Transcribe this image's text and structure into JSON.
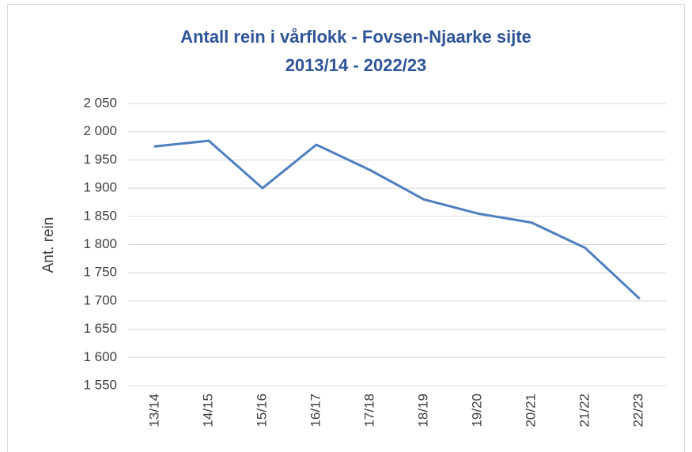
{
  "chart_data": {
    "type": "line",
    "title": "Antall rein i vårflokk - Fovsen-Njaarke sijte",
    "subtitle": "2013/14 - 2022/23",
    "y_label": "Ant. rein",
    "categories": [
      "13/14",
      "14/15",
      "15/16",
      "16/17",
      "17/18",
      "18/19",
      "19/20",
      "20/21",
      "21/22",
      "22/23"
    ],
    "series": [
      {
        "name": "Ant. rein",
        "color": "#4f7fbf",
        "values": [
          1974,
          1984,
          1900,
          1977,
          1932,
          1880,
          1855,
          1839,
          1794,
          1705
        ]
      }
    ],
    "ylim": [
      1550,
      2050
    ],
    "yticks": [
      {
        "value": 1550,
        "label": "1 550"
      },
      {
        "value": 1600,
        "label": "1 600"
      },
      {
        "value": 1650,
        "label": "1 650"
      },
      {
        "value": 1700,
        "label": "1 700"
      },
      {
        "value": 1750,
        "label": "1 750"
      },
      {
        "value": 1800,
        "label": "1 800"
      },
      {
        "value": 1850,
        "label": "1 850"
      },
      {
        "value": 1900,
        "label": "1 900"
      },
      {
        "value": 1950,
        "label": "1 950"
      },
      {
        "value": 2000,
        "label": "2 000"
      },
      {
        "value": 2050,
        "label": "2 050"
      }
    ],
    "grid": true
  }
}
